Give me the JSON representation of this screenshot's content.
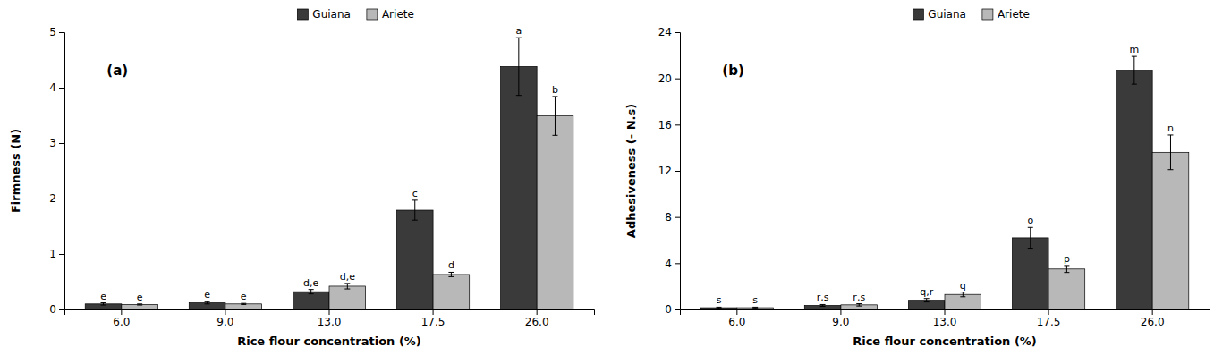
{
  "chart_data": [
    {
      "type": "bar",
      "panel_label": "(a)",
      "xlabel": "Rice flour concentration (%)",
      "ylabel": "Firmness (N)",
      "categories": [
        "6.0",
        "9.0",
        "13.0",
        "17.5",
        "26.0"
      ],
      "series": [
        {
          "name": "Guiana",
          "color": "#3a3a3a",
          "values": [
            0.1,
            0.12,
            0.32,
            1.79,
            4.38
          ],
          "errors": [
            0.02,
            0.02,
            0.04,
            0.18,
            0.52
          ],
          "letters": [
            "e",
            "e",
            "d,e",
            "c",
            "a"
          ]
        },
        {
          "name": "Ariete",
          "color": "#b8b8b8",
          "values": [
            0.09,
            0.1,
            0.42,
            0.63,
            3.49
          ],
          "errors": [
            0.01,
            0.01,
            0.05,
            0.04,
            0.35
          ],
          "letters": [
            "e",
            "e",
            "d,e",
            "d",
            "b"
          ]
        }
      ],
      "ylim": [
        0,
        5
      ],
      "yticks": [
        0,
        1,
        2,
        3,
        4,
        5
      ],
      "grid": false,
      "legend": "upper center"
    },
    {
      "type": "bar",
      "panel_label": "(b)",
      "xlabel": "Rice flour concentration (%)",
      "ylabel": "Adhesiveness (- N.s)",
      "categories": [
        "6.0",
        "9.0",
        "13.0",
        "17.5",
        "26.0"
      ],
      "series": [
        {
          "name": "Guiana",
          "color": "#3a3a3a",
          "values": [
            0.15,
            0.35,
            0.8,
            6.2,
            20.7
          ],
          "errors": [
            0.05,
            0.08,
            0.15,
            0.9,
            1.2
          ],
          "letters": [
            "s",
            "r,s",
            "q,r",
            "o",
            "m"
          ]
        },
        {
          "name": "Ariete",
          "color": "#b8b8b8",
          "values": [
            0.15,
            0.4,
            1.3,
            3.5,
            13.6
          ],
          "errors": [
            0.05,
            0.1,
            0.2,
            0.3,
            1.5
          ],
          "letters": [
            "s",
            "r,s",
            "q",
            "p",
            "n"
          ]
        }
      ],
      "ylim": [
        0,
        24
      ],
      "yticks": [
        0,
        4,
        8,
        12,
        16,
        20,
        24
      ],
      "grid": false,
      "legend": "upper center"
    }
  ]
}
